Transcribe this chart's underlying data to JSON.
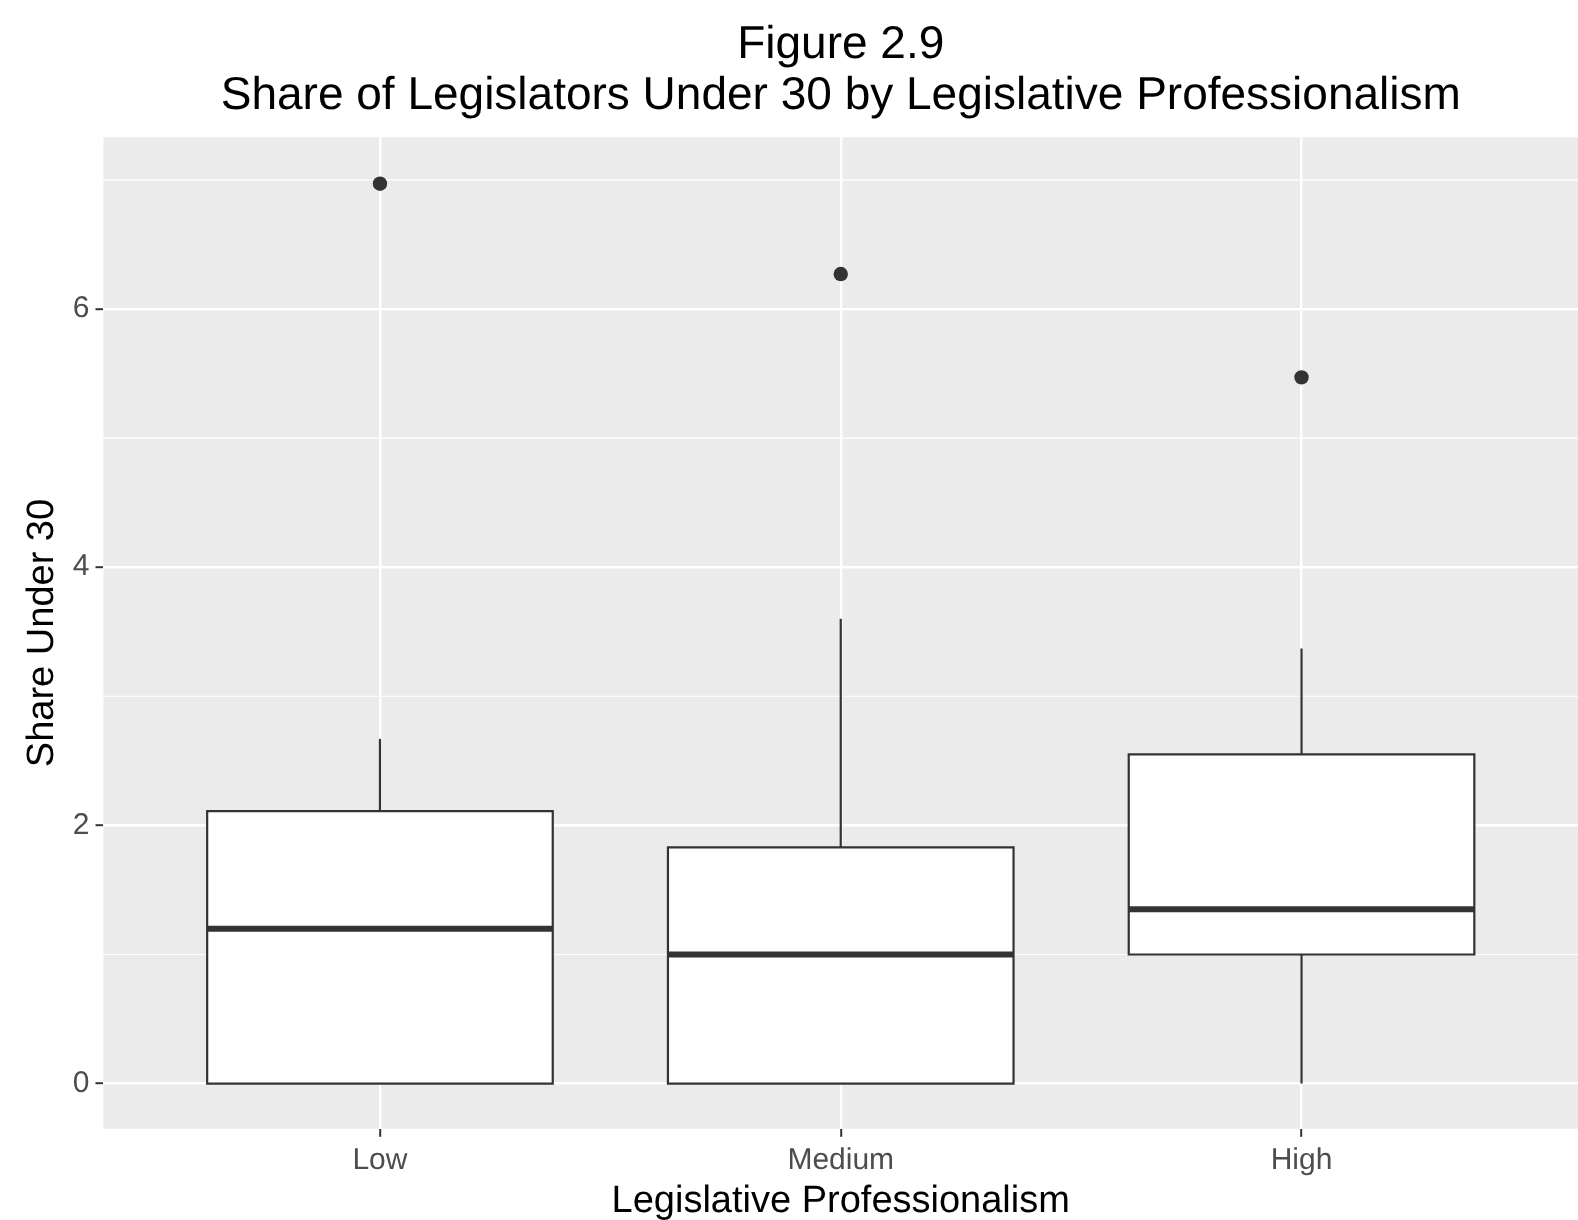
{
  "chart_data": {
    "type": "box",
    "title": "Figure 2.9",
    "subtitle": "Share of Legislators Under 30 by Legislative Professionalism",
    "xlabel": "Legislative Professionalism",
    "ylabel": "Share Under 30",
    "categories": [
      "Low",
      "Medium",
      "High"
    ],
    "boxes": [
      {
        "low": 0,
        "q1": 0,
        "median": 1.2,
        "q3": 2.11,
        "high": 2.67,
        "outliers": [
          6.97
        ]
      },
      {
        "low": 0,
        "q1": 0,
        "median": 1.0,
        "q3": 1.83,
        "high": 3.6,
        "outliers": [
          6.27
        ]
      },
      {
        "low": 0,
        "q1": 1.0,
        "median": 1.35,
        "q3": 2.55,
        "high": 3.37,
        "outliers": [
          5.47
        ]
      }
    ],
    "ylim": [
      -0.35,
      7.33
    ],
    "yticks": [
      0,
      2,
      4,
      6
    ],
    "grid": true
  }
}
